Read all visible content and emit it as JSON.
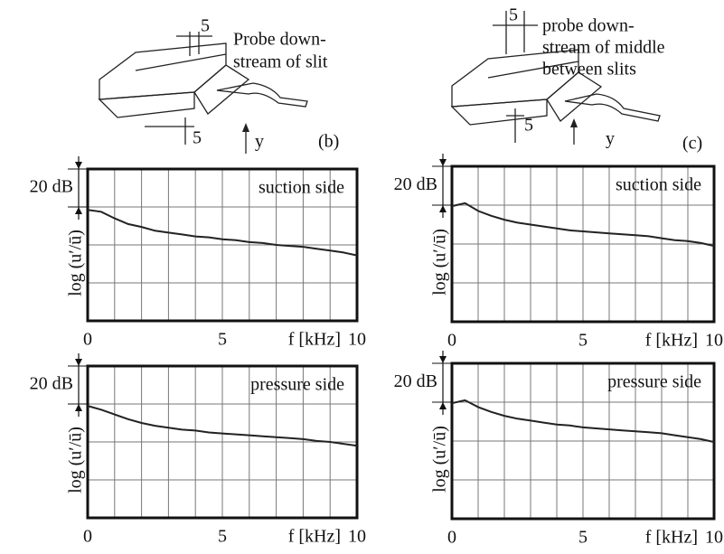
{
  "diagrams": [
    {
      "labels": [
        "5",
        "Probe down-",
        "stream of slit",
        "5",
        "y",
        "(b)"
      ]
    },
    {
      "labels": [
        "5",
        "probe down-",
        "stream of middle",
        "between slits",
        "5",
        "y",
        "(c)"
      ]
    }
  ],
  "chart_data": [
    {
      "type": "line",
      "annotation": "suction side",
      "xlabel": "f [kHz]",
      "ylabel": "log (u′/ū)",
      "color": "#222",
      "scale_bar": {
        "label": "20 dB",
        "from": 60,
        "to": 80
      },
      "xlim": [
        0,
        10
      ],
      "ylim": [
        0,
        80
      ],
      "xticks": [
        0,
        5,
        10
      ],
      "xgrid": [
        1,
        2,
        3,
        4,
        5,
        6,
        7,
        8,
        9
      ],
      "ygrid": [
        20,
        40,
        60
      ],
      "x": [
        0,
        0.5,
        1,
        1.5,
        2,
        2.5,
        3,
        3.5,
        4,
        4.5,
        5,
        5.5,
        6,
        6.5,
        7,
        7.5,
        8,
        8.5,
        9,
        9.5,
        10
      ],
      "values": [
        58.5,
        57.5,
        54,
        51,
        49.5,
        47.5,
        46.5,
        45.5,
        44.5,
        44,
        43,
        42.5,
        41.5,
        41,
        40,
        39.5,
        39,
        38,
        37,
        36,
        34.5
      ]
    },
    {
      "type": "line",
      "annotation": "pressure side",
      "xlabel": "f [kHz]",
      "ylabel": "log (u′/ū)",
      "color": "#222",
      "scale_bar": {
        "label": "20 dB",
        "from": 60,
        "to": 80
      },
      "xlim": [
        0,
        10
      ],
      "ylim": [
        0,
        80
      ],
      "xticks": [
        0,
        5,
        10
      ],
      "xgrid": [
        1,
        2,
        3,
        4,
        5,
        6,
        7,
        8,
        9
      ],
      "ygrid": [
        20,
        40,
        60
      ],
      "x": [
        0,
        0.5,
        1,
        1.5,
        2,
        2.5,
        3,
        3.5,
        4,
        4.5,
        5,
        5.5,
        6,
        6.5,
        7,
        7.5,
        8,
        8.5,
        9,
        9.5,
        10
      ],
      "values": [
        59,
        57,
        54.5,
        52,
        50,
        48.5,
        47.5,
        46.5,
        46,
        45,
        44.5,
        44,
        43.5,
        43,
        42.5,
        42,
        41.5,
        40.5,
        40,
        39,
        38
      ]
    },
    {
      "type": "line",
      "annotation": "suction side",
      "xlabel": "f [kHz]",
      "ylabel": "log (u′/ū)",
      "color": "#222",
      "scale_bar": {
        "label": "20 dB",
        "from": 60,
        "to": 80
      },
      "xlim": [
        0,
        10
      ],
      "ylim": [
        0,
        80
      ],
      "xticks": [
        0,
        5,
        10
      ],
      "xgrid": [
        1,
        2,
        3,
        4,
        5,
        6,
        7,
        8,
        9
      ],
      "ygrid": [
        20,
        40,
        60
      ],
      "x": [
        0,
        0.5,
        1,
        1.5,
        2,
        2.5,
        3,
        3.5,
        4,
        4.5,
        5,
        5.5,
        6,
        6.5,
        7,
        7.5,
        8,
        8.5,
        9,
        9.5,
        10
      ],
      "values": [
        59.5,
        61,
        57,
        54.5,
        52.5,
        51,
        50,
        49,
        48,
        47,
        46.5,
        46,
        45.5,
        45,
        44.5,
        44,
        43,
        42,
        41.5,
        40.5,
        39
      ]
    },
    {
      "type": "line",
      "annotation": "pressure side",
      "xlabel": "f [kHz]",
      "ylabel": "log (u′/ū)",
      "color": "#222",
      "scale_bar": {
        "label": "20 dB",
        "from": 60,
        "to": 80
      },
      "xlim": [
        0,
        10
      ],
      "ylim": [
        0,
        80
      ],
      "xticks": [
        0,
        5,
        10
      ],
      "xgrid": [
        1,
        2,
        3,
        4,
        5,
        6,
        7,
        8,
        9
      ],
      "ygrid": [
        20,
        40,
        60
      ],
      "x": [
        0,
        0.5,
        1,
        1.5,
        2,
        2.5,
        3,
        3.5,
        4,
        4.5,
        5,
        5.5,
        6,
        6.5,
        7,
        7.5,
        8,
        8.5,
        9,
        9.5,
        10
      ],
      "values": [
        59.5,
        61,
        57.5,
        55,
        53,
        51.5,
        50.5,
        49.5,
        48.5,
        48,
        47,
        46.5,
        46,
        45.5,
        45,
        44.5,
        44,
        43,
        42,
        41,
        39.5
      ]
    }
  ]
}
